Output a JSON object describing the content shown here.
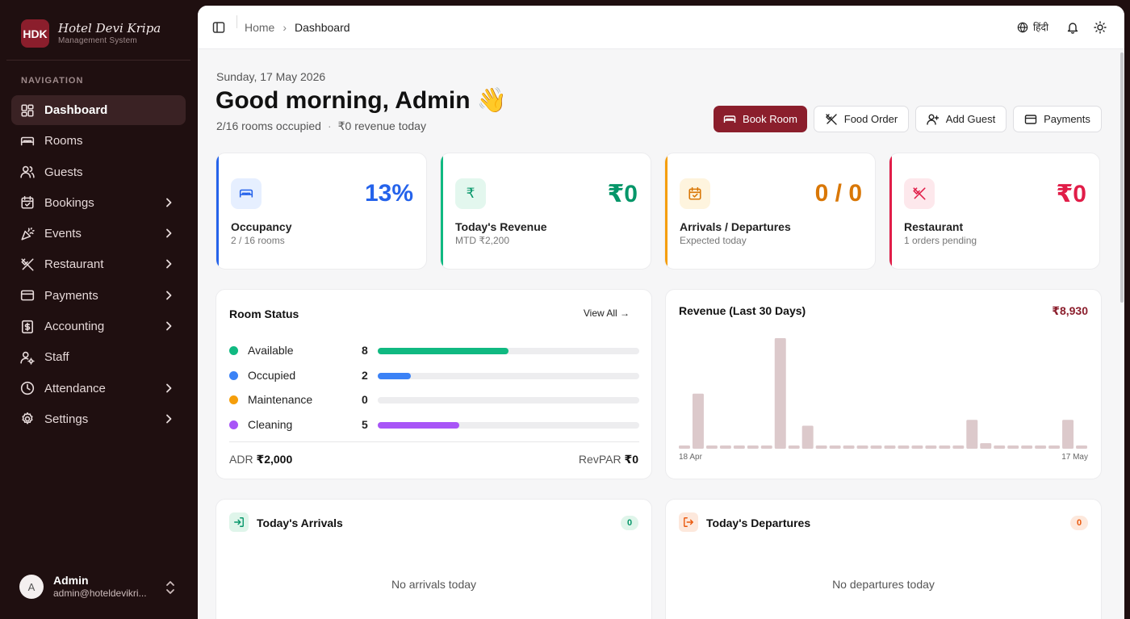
{
  "brand": {
    "logo": "HDK",
    "name": "Hotel Devi Kripa",
    "subtitle": "Management System"
  },
  "nav": {
    "label": "NAVIGATION",
    "items": [
      {
        "label": "Dashboard",
        "icon": "grid-icon",
        "active": true,
        "chevron": false
      },
      {
        "label": "Rooms",
        "icon": "bed-icon",
        "active": false,
        "chevron": false
      },
      {
        "label": "Guests",
        "icon": "users-icon",
        "active": false,
        "chevron": false
      },
      {
        "label": "Bookings",
        "icon": "calendar-icon",
        "active": false,
        "chevron": true
      },
      {
        "label": "Events",
        "icon": "party-popper-icon",
        "active": false,
        "chevron": true
      },
      {
        "label": "Restaurant",
        "icon": "utensils-icon",
        "active": false,
        "chevron": true
      },
      {
        "label": "Payments",
        "icon": "credit-card-icon",
        "active": false,
        "chevron": true
      },
      {
        "label": "Accounting",
        "icon": "dollar-receipt-icon",
        "active": false,
        "chevron": true
      },
      {
        "label": "Staff",
        "icon": "user-cog-icon",
        "active": false,
        "chevron": false
      },
      {
        "label": "Attendance",
        "icon": "clock-icon",
        "active": false,
        "chevron": true
      },
      {
        "label": "Settings",
        "icon": "gear-icon",
        "active": false,
        "chevron": true
      }
    ]
  },
  "user": {
    "initial": "A",
    "name": "Admin",
    "email": "admin@hoteldevikri..."
  },
  "topbar": {
    "crumb_home": "Home",
    "crumb_current": "Dashboard",
    "language": "हिंदी"
  },
  "header": {
    "date": "Sunday, 17 May 2026",
    "greeting": "Good morning, Admin 👋",
    "occupied": "2/16 rooms occupied",
    "revenue_today": "₹0 revenue today"
  },
  "actions": {
    "book_room": "Book Room",
    "food_order": "Food Order",
    "add_guest": "Add Guest",
    "payments": "Payments"
  },
  "stats": {
    "occupancy": {
      "value": "13%",
      "title": "Occupancy",
      "note": "2 / 16 rooms",
      "color": "#2563eb"
    },
    "revenue": {
      "value": "₹0",
      "title": "Today's Revenue",
      "note": "MTD ₹2,200",
      "color": "#059669"
    },
    "arrivals": {
      "value": "0 / 0",
      "title": "Arrivals / Departures",
      "note": "Expected today",
      "color": "#d97706"
    },
    "restaurant": {
      "value": "₹0",
      "title": "Restaurant",
      "note": "1 orders pending",
      "color": "#e11d48"
    }
  },
  "room_status": {
    "title": "Room Status",
    "view_all": "View All →",
    "rows": [
      {
        "label": "Available",
        "count": "8",
        "fraction": 0.5,
        "color": "#10b981"
      },
      {
        "label": "Occupied",
        "count": "2",
        "fraction": 0.125,
        "color": "#3b82f6"
      },
      {
        "label": "Maintenance",
        "count": "0",
        "fraction": 0,
        "color": "#f59e0b"
      },
      {
        "label": "Cleaning",
        "count": "5",
        "fraction": 0.3125,
        "color": "#a855f7"
      }
    ],
    "adr_label": "ADR",
    "adr_value": "₹2,000",
    "revpar_label": "RevPAR",
    "revpar_value": "₹0"
  },
  "chart_data": {
    "type": "bar",
    "title": "Revenue (Last 30 Days)",
    "total": "₹8,930",
    "x_start": "18 Apr",
    "x_end": "17 May",
    "values": [
      150,
      3300,
      150,
      150,
      150,
      150,
      150,
      6620,
      150,
      1380,
      150,
      150,
      150,
      150,
      150,
      150,
      150,
      150,
      150,
      150,
      150,
      1730,
      330,
      150,
      150,
      150,
      150,
      150,
      1730,
      150
    ],
    "color": "#dcc9cb"
  },
  "arrivals": {
    "title": "Today's Arrivals",
    "count": "0",
    "empty": "No arrivals today"
  },
  "departures": {
    "title": "Today's Departures",
    "count": "0",
    "empty": "No departures today"
  }
}
